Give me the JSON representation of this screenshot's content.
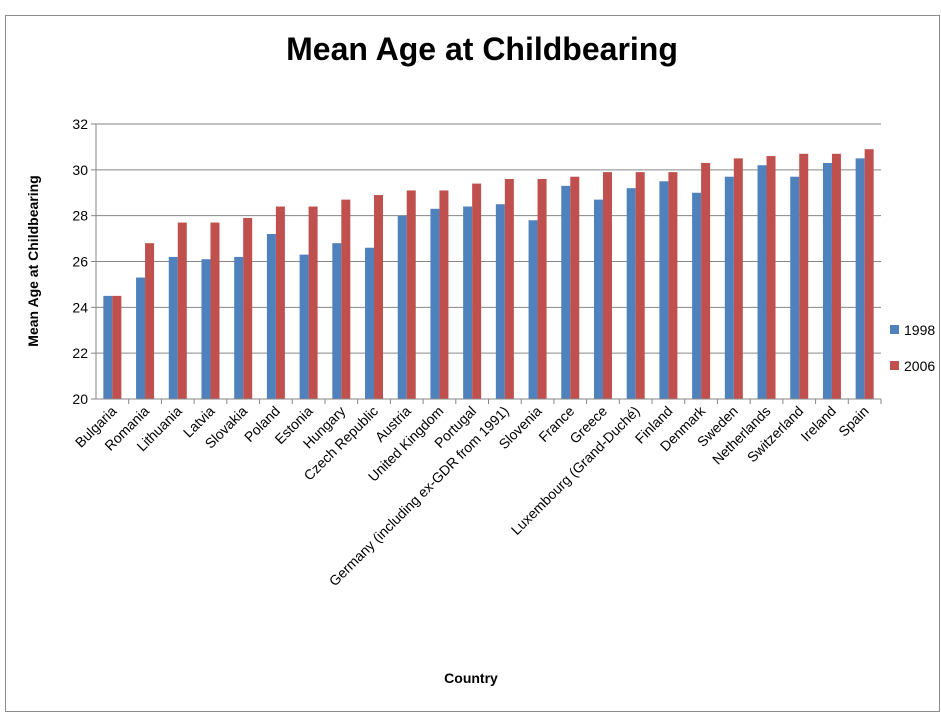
{
  "colors": {
    "series_1998": "#4f81bd",
    "series_2006": "#c0504d",
    "gridline": "#868686",
    "axis": "#868686"
  },
  "chart_data": {
    "type": "bar",
    "title": "Mean Age at Childbearing",
    "xlabel": "Country",
    "ylabel": "Mean Age at Childbearing",
    "ylim": [
      20,
      32
    ],
    "yticks": [
      "20",
      "22",
      "24",
      "26",
      "28",
      "30",
      "32"
    ],
    "grid": true,
    "legend_position": "right",
    "categories": [
      "Bulgaria",
      "Romania",
      "Lithuania",
      "Latvia",
      "Slovakia",
      "Poland",
      "Estonia",
      "Hungary",
      "Czech Republic",
      "Austria",
      "United Kingdom",
      "Portugal",
      "Germany (including ex-GDR from 1991)",
      "Slovenia",
      "France",
      "Greece",
      "Luxembourg (Grand-Duché)",
      "Finland",
      "Denmark",
      "Sweden",
      "Netherlands",
      "Switzerland",
      "Ireland",
      "Spain"
    ],
    "series": [
      {
        "name": "1998",
        "values": [
          24.5,
          25.3,
          26.2,
          26.1,
          26.2,
          27.2,
          26.3,
          26.8,
          26.6,
          28.0,
          28.3,
          28.4,
          28.5,
          27.8,
          29.3,
          28.7,
          29.2,
          29.5,
          29.0,
          29.7,
          30.2,
          29.7,
          30.3,
          30.5
        ]
      },
      {
        "name": "2006",
        "values": [
          24.5,
          26.8,
          27.7,
          27.7,
          27.9,
          28.4,
          28.4,
          28.7,
          28.9,
          29.1,
          29.1,
          29.4,
          29.6,
          29.6,
          29.7,
          29.9,
          29.9,
          29.9,
          30.3,
          30.5,
          30.6,
          30.7,
          30.7,
          30.9
        ]
      }
    ]
  }
}
